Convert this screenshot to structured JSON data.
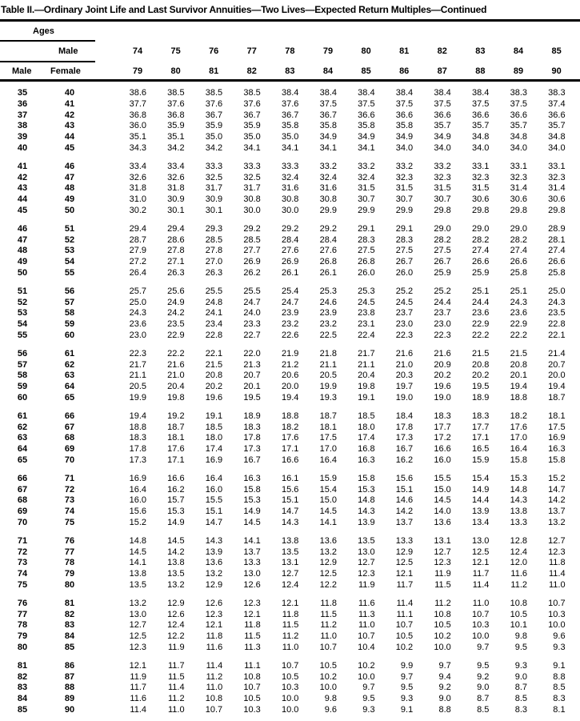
{
  "title": "Table II.—Ordinary Joint Life and Last Survivor Annuities—Two Lives—Expected Return Multiples—Continued",
  "header": {
    "ages_label": "Ages",
    "male_label_top": "Male",
    "male_label": "Male",
    "female_label": "Female",
    "male_ages": [
      "74",
      "75",
      "76",
      "77",
      "78",
      "79",
      "80",
      "81",
      "82",
      "83",
      "84",
      "85"
    ],
    "female_ages": [
      "79",
      "80",
      "81",
      "82",
      "83",
      "84",
      "85",
      "86",
      "87",
      "88",
      "89",
      "90"
    ]
  },
  "groups": [
    [
      {
        "male": "35",
        "female": "40",
        "values": [
          "38.6",
          "38.5",
          "38.5",
          "38.5",
          "38.4",
          "38.4",
          "38.4",
          "38.4",
          "38.4",
          "38.4",
          "38.3",
          "38.3"
        ]
      },
      {
        "male": "36",
        "female": "41",
        "values": [
          "37.7",
          "37.6",
          "37.6",
          "37.6",
          "37.6",
          "37.5",
          "37.5",
          "37.5",
          "37.5",
          "37.5",
          "37.5",
          "37.4"
        ]
      },
      {
        "male": "37",
        "female": "42",
        "values": [
          "36.8",
          "36.8",
          "36.7",
          "36.7",
          "36.7",
          "36.7",
          "36.6",
          "36.6",
          "36.6",
          "36.6",
          "36.6",
          "36.6"
        ]
      },
      {
        "male": "38",
        "female": "43",
        "values": [
          "36.0",
          "35.9",
          "35.9",
          "35.9",
          "35.8",
          "35.8",
          "35.8",
          "35.8",
          "35.7",
          "35.7",
          "35.7",
          "35.7"
        ]
      },
      {
        "male": "39",
        "female": "44",
        "values": [
          "35.1",
          "35.1",
          "35.0",
          "35.0",
          "35.0",
          "34.9",
          "34.9",
          "34.9",
          "34.9",
          "34.8",
          "34.8",
          "34.8"
        ]
      },
      {
        "male": "40",
        "female": "45",
        "values": [
          "34.3",
          "34.2",
          "34.2",
          "34.1",
          "34.1",
          "34.1",
          "34.1",
          "34.0",
          "34.0",
          "34.0",
          "34.0",
          "34.0"
        ]
      }
    ],
    [
      {
        "male": "41",
        "female": "46",
        "values": [
          "33.4",
          "33.4",
          "33.3",
          "33.3",
          "33.3",
          "33.2",
          "33.2",
          "33.2",
          "33.2",
          "33.1",
          "33.1",
          "33.1"
        ]
      },
      {
        "male": "42",
        "female": "47",
        "values": [
          "32.6",
          "32.6",
          "32.5",
          "32.5",
          "32.4",
          "32.4",
          "32.4",
          "32.3",
          "32.3",
          "32.3",
          "32.3",
          "32.3"
        ]
      },
      {
        "male": "43",
        "female": "48",
        "values": [
          "31.8",
          "31.8",
          "31.7",
          "31.7",
          "31.6",
          "31.6",
          "31.5",
          "31.5",
          "31.5",
          "31.5",
          "31.4",
          "31.4"
        ]
      },
      {
        "male": "44",
        "female": "49",
        "values": [
          "31.0",
          "30.9",
          "30.9",
          "30.8",
          "30.8",
          "30.8",
          "30.7",
          "30.7",
          "30.7",
          "30.6",
          "30.6",
          "30.6"
        ]
      },
      {
        "male": "45",
        "female": "50",
        "values": [
          "30.2",
          "30.1",
          "30.1",
          "30.0",
          "30.0",
          "29.9",
          "29.9",
          "29.9",
          "29.8",
          "29.8",
          "29.8",
          "29.8"
        ]
      }
    ],
    [
      {
        "male": "46",
        "female": "51",
        "values": [
          "29.4",
          "29.4",
          "29.3",
          "29.2",
          "29.2",
          "29.2",
          "29.1",
          "29.1",
          "29.0",
          "29.0",
          "29.0",
          "28.9"
        ]
      },
      {
        "male": "47",
        "female": "52",
        "values": [
          "28.7",
          "28.6",
          "28.5",
          "28.5",
          "28.4",
          "28.4",
          "28.3",
          "28.3",
          "28.2",
          "28.2",
          "28.2",
          "28.1"
        ]
      },
      {
        "male": "48",
        "female": "53",
        "values": [
          "27.9",
          "27.8",
          "27.8",
          "27.7",
          "27.6",
          "27.6",
          "27.5",
          "27.5",
          "27.5",
          "27.4",
          "27.4",
          "27.4"
        ]
      },
      {
        "male": "49",
        "female": "54",
        "values": [
          "27.2",
          "27.1",
          "27.0",
          "26.9",
          "26.9",
          "26.8",
          "26.8",
          "26.7",
          "26.7",
          "26.6",
          "26.6",
          "26.6"
        ]
      },
      {
        "male": "50",
        "female": "55",
        "values": [
          "26.4",
          "26.3",
          "26.3",
          "26.2",
          "26.1",
          "26.1",
          "26.0",
          "26.0",
          "25.9",
          "25.9",
          "25.8",
          "25.8"
        ]
      }
    ],
    [
      {
        "male": "51",
        "female": "56",
        "values": [
          "25.7",
          "25.6",
          "25.5",
          "25.5",
          "25.4",
          "25.3",
          "25.3",
          "25.2",
          "25.2",
          "25.1",
          "25.1",
          "25.0"
        ]
      },
      {
        "male": "52",
        "female": "57",
        "values": [
          "25.0",
          "24.9",
          "24.8",
          "24.7",
          "24.7",
          "24.6",
          "24.5",
          "24.5",
          "24.4",
          "24.4",
          "24.3",
          "24.3"
        ]
      },
      {
        "male": "53",
        "female": "58",
        "values": [
          "24.3",
          "24.2",
          "24.1",
          "24.0",
          "23.9",
          "23.9",
          "23.8",
          "23.7",
          "23.7",
          "23.6",
          "23.6",
          "23.5"
        ]
      },
      {
        "male": "54",
        "female": "59",
        "values": [
          "23.6",
          "23.5",
          "23.4",
          "23.3",
          "23.2",
          "23.2",
          "23.1",
          "23.0",
          "23.0",
          "22.9",
          "22.9",
          "22.8"
        ]
      },
      {
        "male": "55",
        "female": "60",
        "values": [
          "23.0",
          "22.9",
          "22.8",
          "22.7",
          "22.6",
          "22.5",
          "22.4",
          "22.3",
          "22.3",
          "22.2",
          "22.2",
          "22.1"
        ]
      }
    ],
    [
      {
        "male": "56",
        "female": "61",
        "values": [
          "22.3",
          "22.2",
          "22.1",
          "22.0",
          "21.9",
          "21.8",
          "21.7",
          "21.6",
          "21.6",
          "21.5",
          "21.5",
          "21.4"
        ]
      },
      {
        "male": "57",
        "female": "62",
        "values": [
          "21.7",
          "21.6",
          "21.5",
          "21.3",
          "21.2",
          "21.1",
          "21.1",
          "21.0",
          "20.9",
          "20.8",
          "20.8",
          "20.7"
        ]
      },
      {
        "male": "58",
        "female": "63",
        "values": [
          "21.1",
          "21.0",
          "20.8",
          "20.7",
          "20.6",
          "20.5",
          "20.4",
          "20.3",
          "20.2",
          "20.2",
          "20.1",
          "20.0"
        ]
      },
      {
        "male": "59",
        "female": "64",
        "values": [
          "20.5",
          "20.4",
          "20.2",
          "20.1",
          "20.0",
          "19.9",
          "19.8",
          "19.7",
          "19.6",
          "19.5",
          "19.4",
          "19.4"
        ]
      },
      {
        "male": "60",
        "female": "65",
        "values": [
          "19.9",
          "19.8",
          "19.6",
          "19.5",
          "19.4",
          "19.3",
          "19.1",
          "19.0",
          "19.0",
          "18.9",
          "18.8",
          "18.7"
        ]
      }
    ],
    [
      {
        "male": "61",
        "female": "66",
        "values": [
          "19.4",
          "19.2",
          "19.1",
          "18.9",
          "18.8",
          "18.7",
          "18.5",
          "18.4",
          "18.3",
          "18.3",
          "18.2",
          "18.1"
        ]
      },
      {
        "male": "62",
        "female": "67",
        "values": [
          "18.8",
          "18.7",
          "18.5",
          "18.3",
          "18.2",
          "18.1",
          "18.0",
          "17.8",
          "17.7",
          "17.7",
          "17.6",
          "17.5"
        ]
      },
      {
        "male": "63",
        "female": "68",
        "values": [
          "18.3",
          "18.1",
          "18.0",
          "17.8",
          "17.6",
          "17.5",
          "17.4",
          "17.3",
          "17.2",
          "17.1",
          "17.0",
          "16.9"
        ]
      },
      {
        "male": "64",
        "female": "69",
        "values": [
          "17.8",
          "17.6",
          "17.4",
          "17.3",
          "17.1",
          "17.0",
          "16.8",
          "16.7",
          "16.6",
          "16.5",
          "16.4",
          "16.3"
        ]
      },
      {
        "male": "65",
        "female": "70",
        "values": [
          "17.3",
          "17.1",
          "16.9",
          "16.7",
          "16.6",
          "16.4",
          "16.3",
          "16.2",
          "16.0",
          "15.9",
          "15.8",
          "15.8"
        ]
      }
    ],
    [
      {
        "male": "66",
        "female": "71",
        "values": [
          "16.9",
          "16.6",
          "16.4",
          "16.3",
          "16.1",
          "15.9",
          "15.8",
          "15.6",
          "15.5",
          "15.4",
          "15.3",
          "15.2"
        ]
      },
      {
        "male": "67",
        "female": "72",
        "values": [
          "16.4",
          "16.2",
          "16.0",
          "15.8",
          "15.6",
          "15.4",
          "15.3",
          "15.1",
          "15.0",
          "14.9",
          "14.8",
          "14.7"
        ]
      },
      {
        "male": "68",
        "female": "73",
        "values": [
          "16.0",
          "15.7",
          "15.5",
          "15.3",
          "15.1",
          "15.0",
          "14.8",
          "14.6",
          "14.5",
          "14.4",
          "14.3",
          "14.2"
        ]
      },
      {
        "male": "69",
        "female": "74",
        "values": [
          "15.6",
          "15.3",
          "15.1",
          "14.9",
          "14.7",
          "14.5",
          "14.3",
          "14.2",
          "14.0",
          "13.9",
          "13.8",
          "13.7"
        ]
      },
      {
        "male": "70",
        "female": "75",
        "values": [
          "15.2",
          "14.9",
          "14.7",
          "14.5",
          "14.3",
          "14.1",
          "13.9",
          "13.7",
          "13.6",
          "13.4",
          "13.3",
          "13.2"
        ]
      }
    ],
    [
      {
        "male": "71",
        "female": "76",
        "values": [
          "14.8",
          "14.5",
          "14.3",
          "14.1",
          "13.8",
          "13.6",
          "13.5",
          "13.3",
          "13.1",
          "13.0",
          "12.8",
          "12.7"
        ]
      },
      {
        "male": "72",
        "female": "77",
        "values": [
          "14.5",
          "14.2",
          "13.9",
          "13.7",
          "13.5",
          "13.2",
          "13.0",
          "12.9",
          "12.7",
          "12.5",
          "12.4",
          "12.3"
        ]
      },
      {
        "male": "73",
        "female": "78",
        "values": [
          "14.1",
          "13.8",
          "13.6",
          "13.3",
          "13.1",
          "12.9",
          "12.7",
          "12.5",
          "12.3",
          "12.1",
          "12.0",
          "11.8"
        ]
      },
      {
        "male": "74",
        "female": "79",
        "values": [
          "13.8",
          "13.5",
          "13.2",
          "13.0",
          "12.7",
          "12.5",
          "12.3",
          "12.1",
          "11.9",
          "11.7",
          "11.6",
          "11.4"
        ]
      },
      {
        "male": "75",
        "female": "80",
        "values": [
          "13.5",
          "13.2",
          "12.9",
          "12.6",
          "12.4",
          "12.2",
          "11.9",
          "11.7",
          "11.5",
          "11.4",
          "11.2",
          "11.0"
        ]
      }
    ],
    [
      {
        "male": "76",
        "female": "81",
        "values": [
          "13.2",
          "12.9",
          "12.6",
          "12.3",
          "12.1",
          "11.8",
          "11.6",
          "11.4",
          "11.2",
          "11.0",
          "10.8",
          "10.7"
        ]
      },
      {
        "male": "77",
        "female": "82",
        "values": [
          "13.0",
          "12.6",
          "12.3",
          "12.1",
          "11.8",
          "11.5",
          "11.3",
          "11.1",
          "10.8",
          "10.7",
          "10.5",
          "10.3"
        ]
      },
      {
        "male": "78",
        "female": "83",
        "values": [
          "12.7",
          "12.4",
          "12.1",
          "11.8",
          "11.5",
          "11.2",
          "11.0",
          "10.7",
          "10.5",
          "10.3",
          "10.1",
          "10.0"
        ]
      },
      {
        "male": "79",
        "female": "84",
        "values": [
          "12.5",
          "12.2",
          "11.8",
          "11.5",
          "11.2",
          "11.0",
          "10.7",
          "10.5",
          "10.2",
          "10.0",
          "9.8",
          "9.6"
        ]
      },
      {
        "male": "80",
        "female": "85",
        "values": [
          "12.3",
          "11.9",
          "11.6",
          "11.3",
          "11.0",
          "10.7",
          "10.4",
          "10.2",
          "10.0",
          "9.7",
          "9.5",
          "9.3"
        ]
      }
    ],
    [
      {
        "male": "81",
        "female": "86",
        "values": [
          "12.1",
          "11.7",
          "11.4",
          "11.1",
          "10.7",
          "10.5",
          "10.2",
          "9.9",
          "9.7",
          "9.5",
          "9.3",
          "9.1"
        ]
      },
      {
        "male": "82",
        "female": "87",
        "values": [
          "11.9",
          "11.5",
          "11.2",
          "10.8",
          "10.5",
          "10.2",
          "10.0",
          "9.7",
          "9.4",
          "9.2",
          "9.0",
          "8.8"
        ]
      },
      {
        "male": "83",
        "female": "88",
        "values": [
          "11.7",
          "11.4",
          "11.0",
          "10.7",
          "10.3",
          "10.0",
          "9.7",
          "9.5",
          "9.2",
          "9.0",
          "8.7",
          "8.5"
        ]
      },
      {
        "male": "84",
        "female": "89",
        "values": [
          "11.6",
          "11.2",
          "10.8",
          "10.5",
          "10.0",
          "9.8",
          "9.5",
          "9.3",
          "9.0",
          "8.7",
          "8.5",
          "8.3"
        ]
      },
      {
        "male": "85",
        "female": "90",
        "values": [
          "11.4",
          "11.0",
          "10.7",
          "10.3",
          "10.0",
          "9.6",
          "9.3",
          "9.1",
          "8.8",
          "8.5",
          "8.3",
          "8.1"
        ]
      }
    ]
  ]
}
